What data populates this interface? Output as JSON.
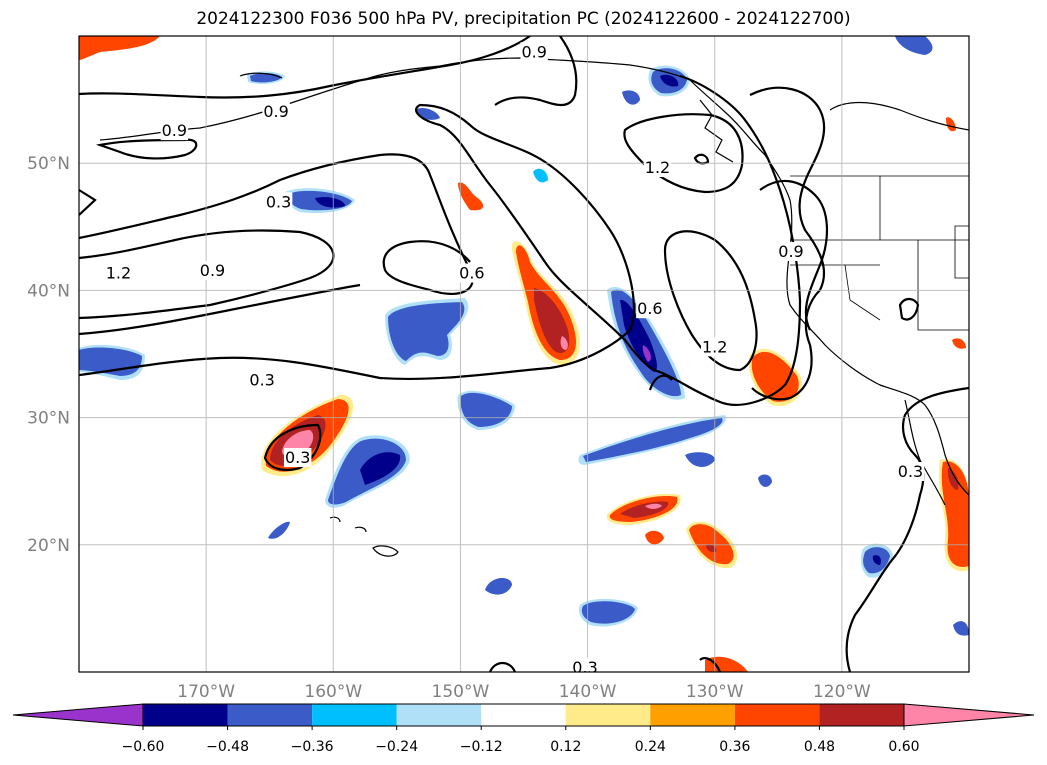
{
  "title": "2024122300 F036 500 hPa PV, precipitation PC (2024122600 - 2024122700)",
  "map": {
    "lon_ticks": [
      {
        "lon": -170,
        "label": "170°W"
      },
      {
        "lon": -160,
        "label": "160°W"
      },
      {
        "lon": -150,
        "label": "150°W"
      },
      {
        "lon": -140,
        "label": "140°W"
      },
      {
        "lon": -130,
        "label": "130°W"
      },
      {
        "lon": -120,
        "label": "120°W"
      }
    ],
    "lat_ticks": [
      {
        "lat": 50,
        "label": "50°N"
      },
      {
        "lat": 40,
        "label": "40°N"
      },
      {
        "lat": 30,
        "label": "30°N"
      },
      {
        "lat": 20,
        "label": "20°N"
      }
    ],
    "extent": {
      "lon_min": -180,
      "lon_max": -110,
      "lat_min": 10,
      "lat_max": 60
    },
    "contour_labels": [
      {
        "text": "0.9",
        "lon": -144.2,
        "lat": 58.8
      },
      {
        "text": "0.9",
        "lon": -164.5,
        "lat": 54.1
      },
      {
        "text": "0.9",
        "lon": -172.5,
        "lat": 52.6
      },
      {
        "text": "0.3",
        "lon": -164.3,
        "lat": 47.0
      },
      {
        "text": "1.2",
        "lon": -176.9,
        "lat": 41.4
      },
      {
        "text": "0.9",
        "lon": -169.5,
        "lat": 41.6
      },
      {
        "text": "0.6",
        "lon": -149.1,
        "lat": 41.4
      },
      {
        "text": "1.2",
        "lon": -134.5,
        "lat": 49.7
      },
      {
        "text": "0.9",
        "lon": -124.0,
        "lat": 43.1
      },
      {
        "text": "0.6",
        "lon": -135.1,
        "lat": 38.6
      },
      {
        "text": "1.2",
        "lon": -130.0,
        "lat": 35.6
      },
      {
        "text": "0.3",
        "lon": -165.6,
        "lat": 33.0
      },
      {
        "text": "0.3",
        "lon": -162.8,
        "lat": 26.9
      },
      {
        "text": "0.3",
        "lon": -114.6,
        "lat": 25.8
      },
      {
        "text": "0.3",
        "lon": -140.2,
        "lat": 10.4
      }
    ]
  },
  "colorbar": {
    "levels": [
      -0.6,
      -0.48,
      -0.36,
      -0.24,
      -0.12,
      0.12,
      0.24,
      0.36,
      0.48,
      0.6
    ],
    "tick_labels": [
      "−0.60",
      "−0.48",
      "−0.36",
      "−0.24",
      "−0.12",
      "0.12",
      "0.24",
      "0.36",
      "0.48",
      "0.60"
    ],
    "colors": [
      "#9933cc",
      "#00008b",
      "#3a5bc8",
      "#00bfff",
      "#b0e0f8",
      "#ffffff",
      "#ffeb8a",
      "#ff9f00",
      "#ff4500",
      "#b22222",
      "#ff85a8"
    ],
    "extend": "both"
  }
}
